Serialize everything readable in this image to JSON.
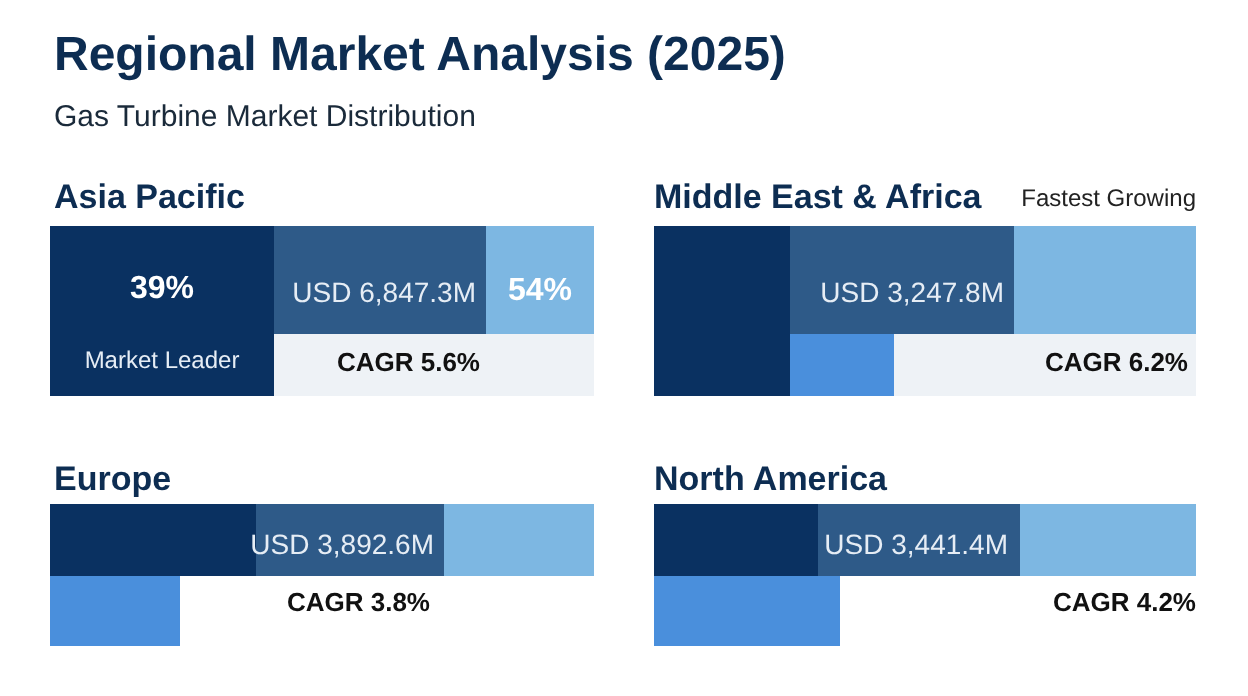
{
  "chart_data": {
    "type": "other",
    "title": "Regional Market Analysis (2025)",
    "subtitle": "Gas Turbine Market Distribution",
    "categories": [
      "Asia Pacific",
      "Middle East & Africa",
      "Europe",
      "North America"
    ],
    "values": [
      5.6,
      6.2,
      3.8,
      4.2
    ],
    "value_labels": [
      "CAGR 5.6%",
      "CAGR 6.2%",
      "CAGR 3.8%",
      "CAGR 4.2%"
    ],
    "annotations": [
      {
        "text": "39%",
        "x": "Asia Pacific"
      },
      {
        "text": "Market Leader",
        "x": "Asia Pacific"
      },
      {
        "text": "USD 6,847.3M",
        "x": "Asia Pacific"
      },
      {
        "text": "54%",
        "x": "Asia Pacific"
      },
      {
        "text": "Fastest Growing",
        "x": "Middle East & Africa"
      },
      {
        "text": "USD 3,247.8M",
        "x": "Middle East & Africa"
      },
      {
        "text": "USD 3,892.6M",
        "x": "Europe"
      },
      {
        "text": "USD 3,441.4M",
        "x": "North America"
      }
    ]
  }
}
